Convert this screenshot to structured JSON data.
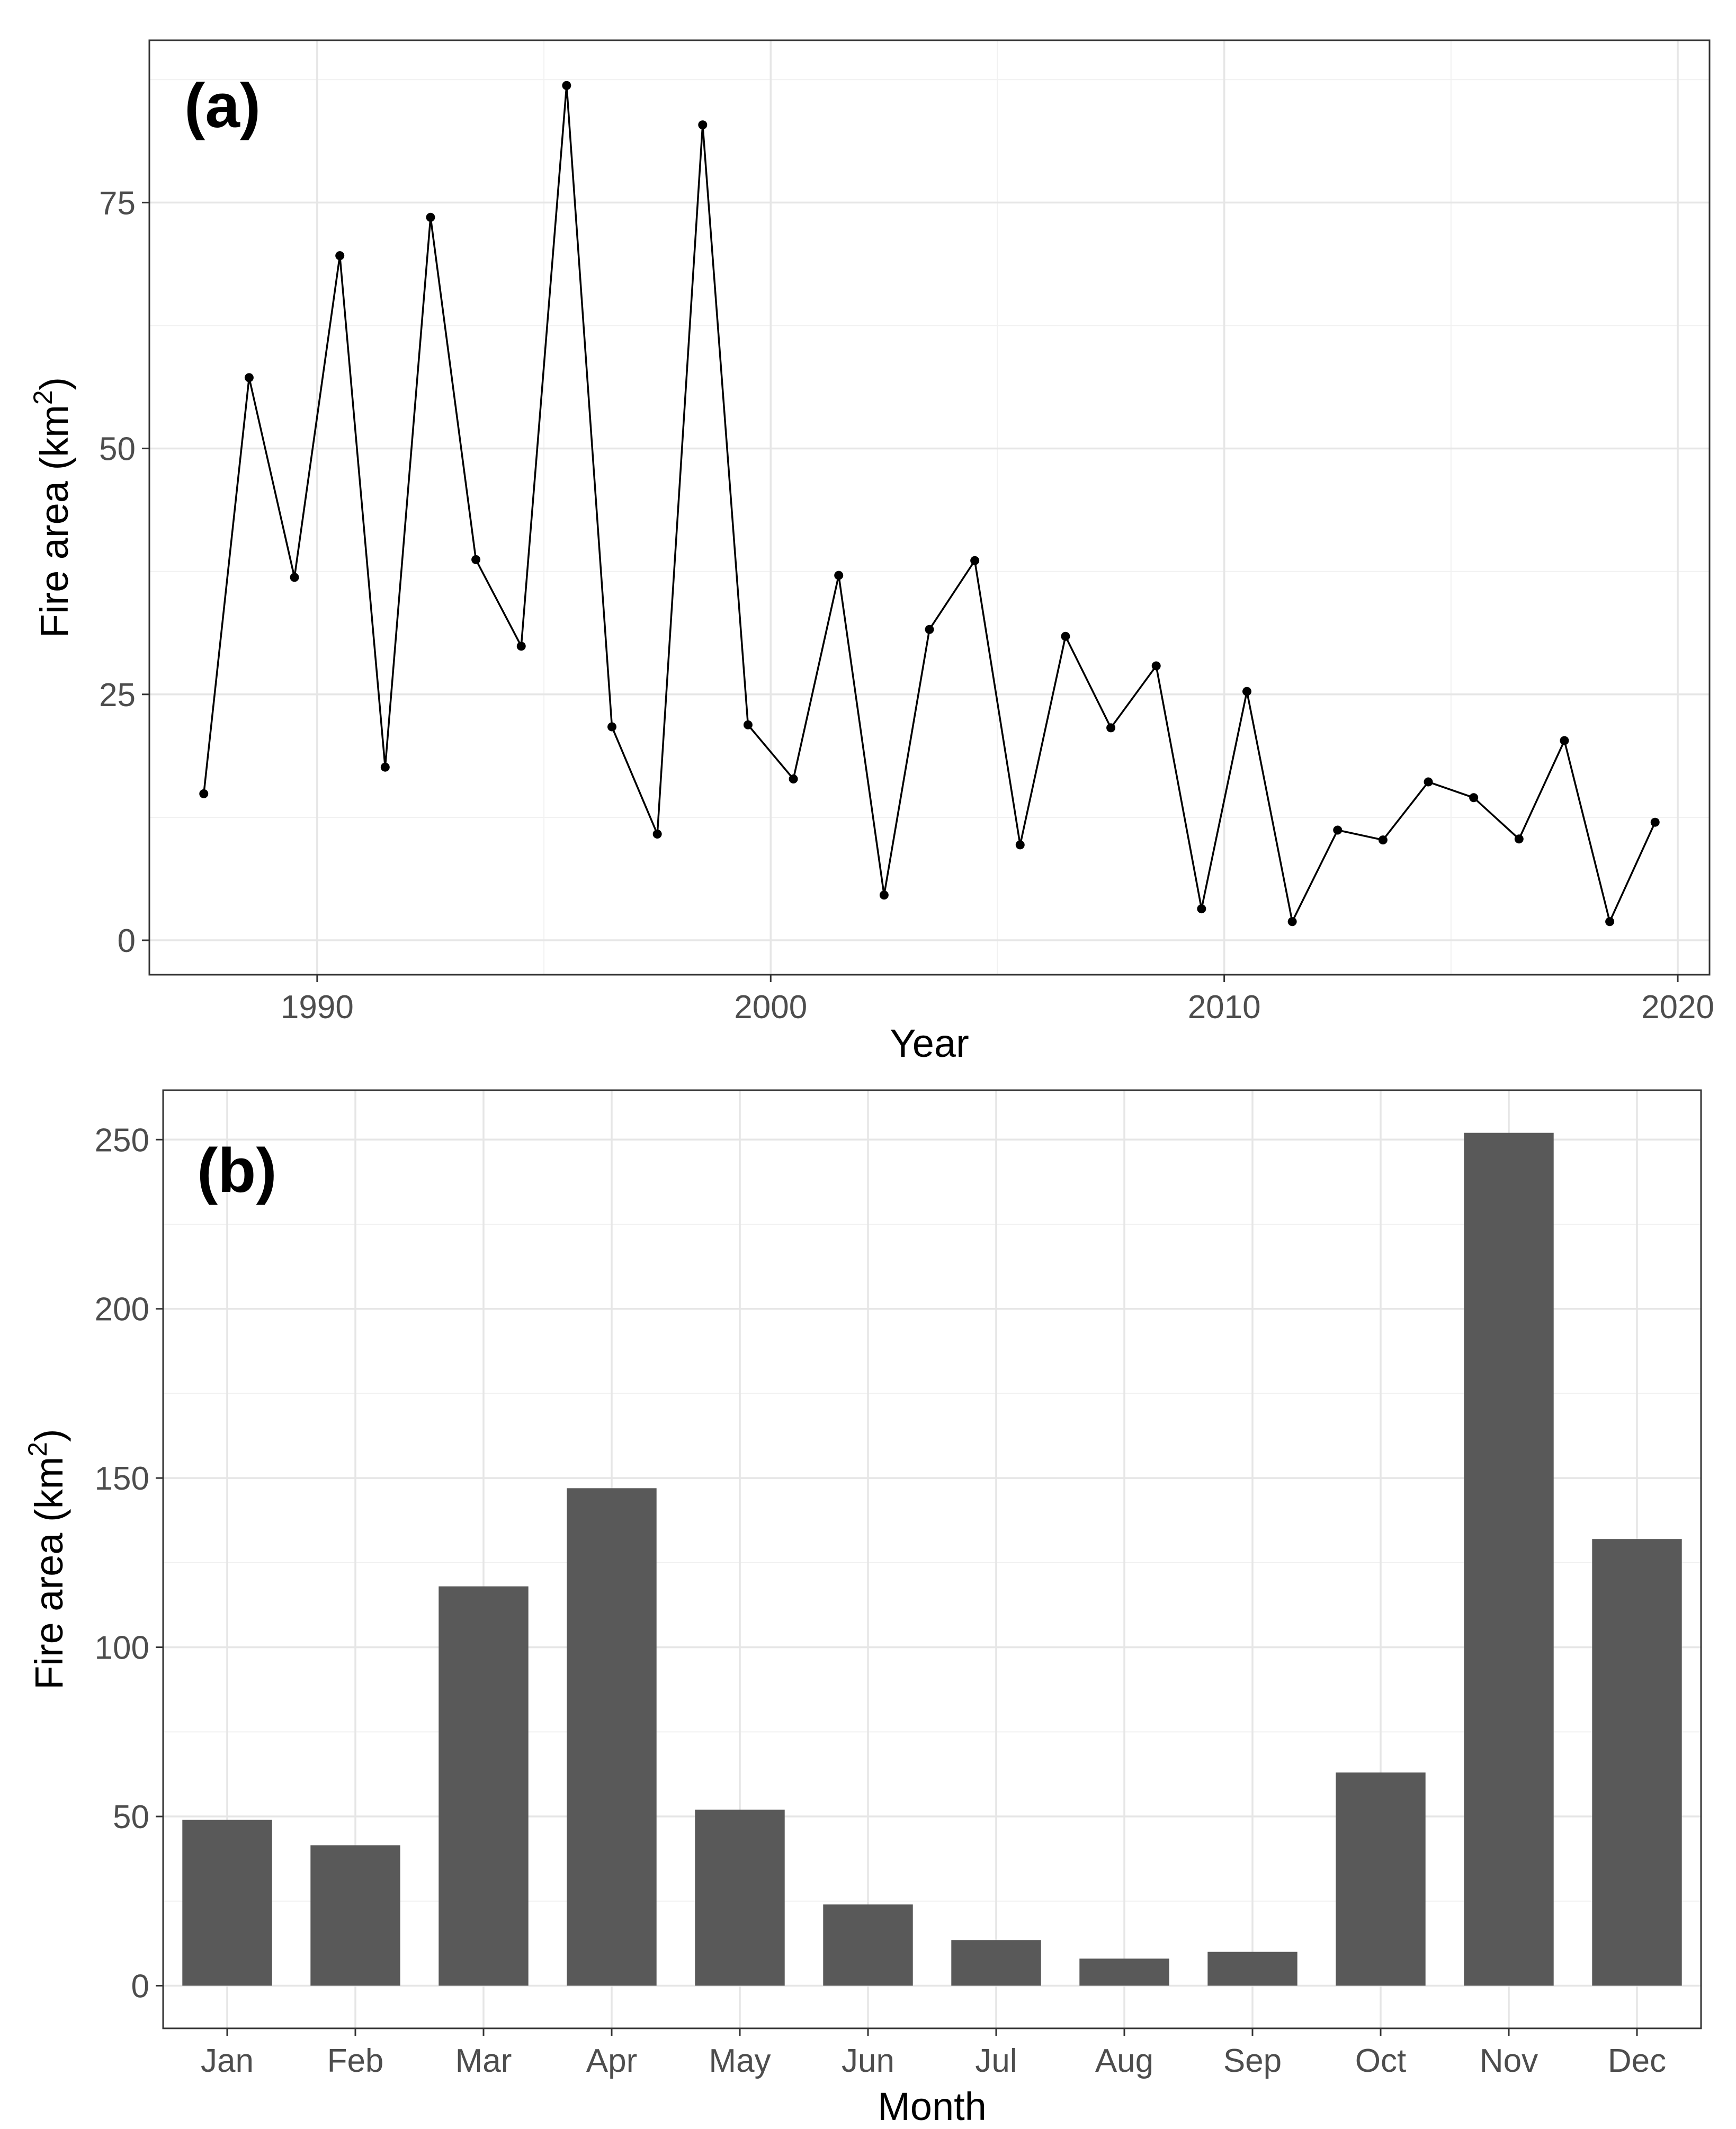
{
  "chart_data": [
    {
      "type": "line",
      "panel_label": "(a)",
      "title": "",
      "xlabel": "Year",
      "ylabel": "Fire area (km",
      "ylabel_superscript": "2",
      "ylabel_close": ")",
      "xlim": [
        1986.3,
        2020.7
      ],
      "ylim": [
        -3.5,
        91.5
      ],
      "xticks": [
        1990,
        2000,
        2010,
        2020
      ],
      "yticks": [
        0,
        25,
        50,
        75
      ],
      "grid": true,
      "x": [
        1987.5,
        1988.5,
        1989.5,
        1990.5,
        1991.5,
        1992.5,
        1993.5,
        1994.5,
        1995.5,
        1996.5,
        1997.5,
        1998.5,
        1999.5,
        2000.5,
        2001.5,
        2002.5,
        2003.5,
        2004.5,
        2005.5,
        2006.5,
        2007.5,
        2008.5,
        2009.5,
        2010.5,
        2011.5,
        2012.5,
        2013.5,
        2014.5,
        2015.5,
        2016.5,
        2017.5,
        2018.5,
        2019.5
      ],
      "values": [
        14.9,
        57.2,
        36.9,
        69.6,
        17.6,
        73.5,
        38.7,
        29.9,
        86.9,
        21.7,
        10.8,
        82.9,
        21.9,
        16.4,
        37.1,
        4.6,
        31.6,
        38.6,
        9.7,
        30.9,
        21.6,
        27.9,
        3.2,
        25.3,
        1.9,
        11.2,
        10.2,
        16.1,
        14.5,
        10.3,
        20.3,
        1.9,
        12.0
      ]
    },
    {
      "type": "bar",
      "panel_label": "(b)",
      "title": "",
      "xlabel": "Month",
      "ylabel": "Fire area (km",
      "ylabel_superscript": "2",
      "ylabel_close": ")",
      "categories": [
        "Jan",
        "Feb",
        "Mar",
        "Apr",
        "May",
        "Jun",
        "Jul",
        "Aug",
        "Sep",
        "Oct",
        "Nov",
        "Dec"
      ],
      "values": [
        49,
        41.5,
        118,
        147,
        52,
        24,
        13.5,
        8,
        10,
        63,
        252,
        132
      ],
      "ylim": [
        -12.6,
        264.6
      ],
      "yticks": [
        0,
        50,
        100,
        150,
        200,
        250
      ],
      "grid": true
    }
  ]
}
